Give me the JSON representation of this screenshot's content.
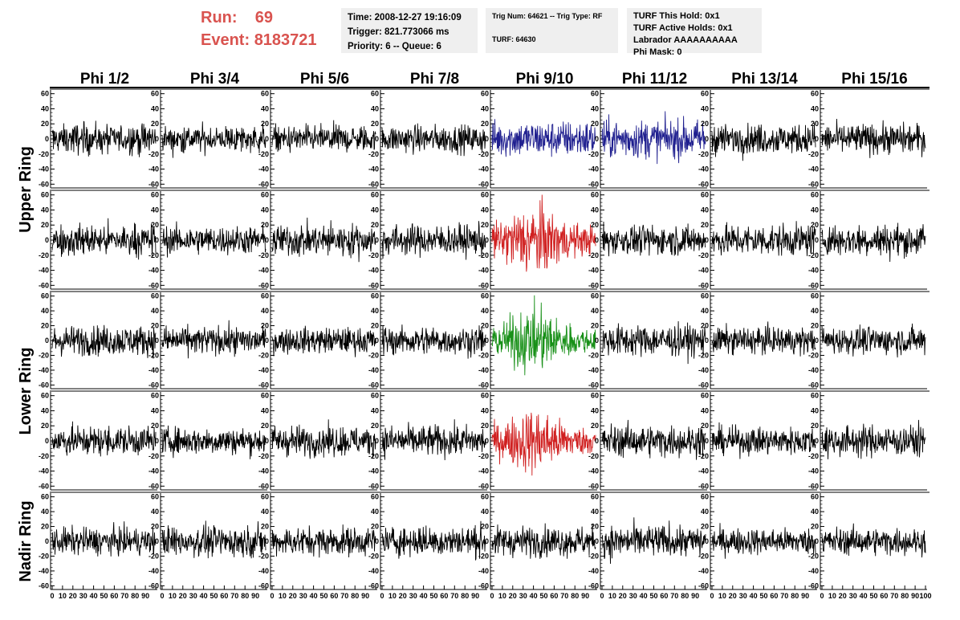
{
  "header": {
    "run_label": "Run:",
    "run_value": "69",
    "event_label": "Event:",
    "event_value": "8183721",
    "time_line": "Time: 2008-12-27 19:16:09",
    "trigger_line": "Trigger: 821.773066 ms",
    "priority_line": "Priority: 6 -- Queue: 6",
    "trig_num_line": "Trig Num: 64621 -- Trig Type: RF",
    "turf_line": "TURF: 64630",
    "turf_hold_line": "TURF This Hold: 0x1",
    "turf_active_line": "TURF Active Holds: 0x1",
    "labrador_line": "Labrador AAAAAAAAAA",
    "phi_mask_line": "Phi Mask: 0"
  },
  "columns": [
    "Phi 1/2",
    "Phi 3/4",
    "Phi 5/6",
    "Phi 7/8",
    "Phi 9/10",
    "Phi 11/12",
    "Phi 13/14",
    "Phi 15/16"
  ],
  "ring_labels": [
    {
      "label": "Upper Ring",
      "rows": [
        0,
        1
      ]
    },
    {
      "label": "Lower Ring",
      "rows": [
        2,
        3
      ]
    },
    {
      "label": "Nadir Ring",
      "rows": [
        4,
        4
      ]
    }
  ],
  "colors": {
    "trace": "#000000",
    "blue": "#1f1f8f",
    "red": "#d02020",
    "green": "#189018",
    "run_text": "#d9534f",
    "info_bg": "#efefef"
  },
  "chart_data": {
    "type": "line",
    "rows": 5,
    "cols": 8,
    "ylim": [
      -65,
      65
    ],
    "yticks": [
      -60,
      -40,
      -20,
      0,
      20,
      40,
      60
    ],
    "xlim": [
      0,
      100
    ],
    "xticks": [
      0,
      10,
      20,
      30,
      40,
      50,
      60,
      70,
      80,
      90,
      100
    ],
    "samples": 260,
    "highlighted_panels": [
      {
        "row": 0,
        "col": 4,
        "color": "blue",
        "amplitude": 16
      },
      {
        "row": 0,
        "col": 5,
        "color": "blue",
        "amplitude": 17
      },
      {
        "row": 1,
        "col": 4,
        "color": "red",
        "amplitude": 22
      },
      {
        "row": 2,
        "col": 4,
        "color": "green",
        "amplitude": 20
      },
      {
        "row": 3,
        "col": 4,
        "color": "red",
        "amplitude": 20
      }
    ],
    "default_amplitude": 13
  }
}
